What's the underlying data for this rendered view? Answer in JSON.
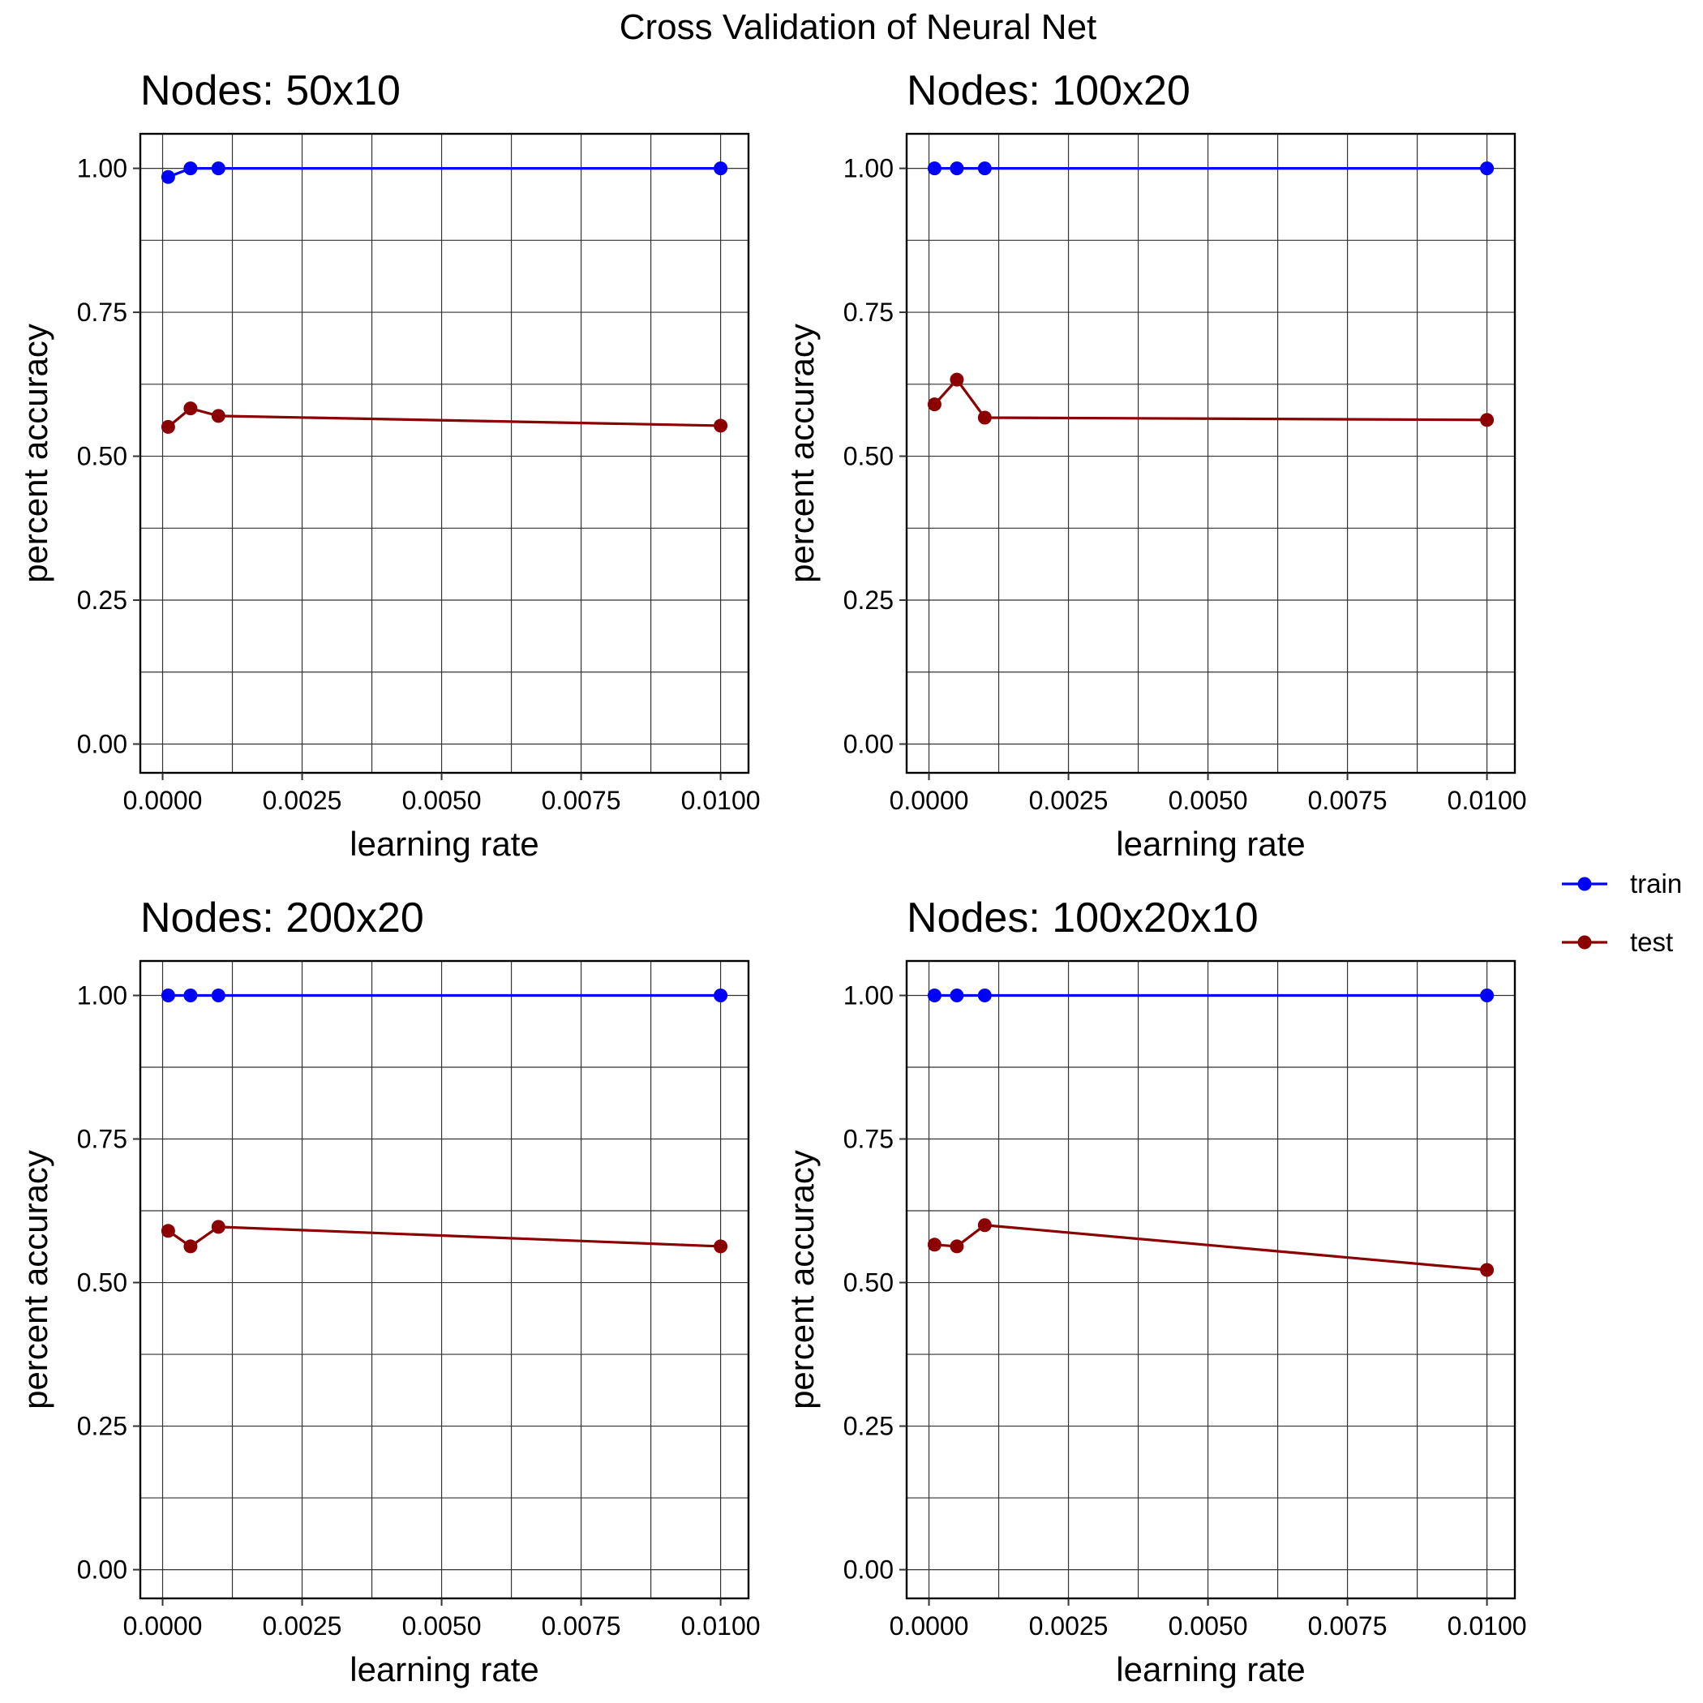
{
  "figure": {
    "title": "Cross Validation of Neural Net"
  },
  "legend": {
    "position": "right",
    "entries": [
      {
        "label": "train",
        "color": "#0000ff"
      },
      {
        "label": "test",
        "color": "#8b0000"
      }
    ]
  },
  "chart_data": [
    {
      "type": "line",
      "title": "Nodes: 50x10",
      "xlabel": "learning rate",
      "ylabel": "percent accuracy",
      "xlim": [
        -0.0004,
        0.0105
      ],
      "ylim": [
        -0.05,
        1.06
      ],
      "xticks": [
        "0.0000",
        "0.0025",
        "0.0050",
        "0.0075",
        "0.0100"
      ],
      "yticks": [
        "0.00",
        "0.25",
        "0.50",
        "0.75",
        "1.00"
      ],
      "grid": true,
      "x": [
        0.0001,
        0.0005,
        0.001,
        0.01
      ],
      "series": [
        {
          "name": "train",
          "color": "#0000ff",
          "values": [
            0.985,
            1.0,
            1.0,
            1.0
          ]
        },
        {
          "name": "test",
          "color": "#8b0000",
          "values": [
            0.551,
            0.583,
            0.57,
            0.553
          ]
        }
      ]
    },
    {
      "type": "line",
      "title": "Nodes: 100x20",
      "xlabel": "learning rate",
      "ylabel": "percent accuracy",
      "xlim": [
        -0.0004,
        0.0105
      ],
      "ylim": [
        -0.05,
        1.06
      ],
      "xticks": [
        "0.0000",
        "0.0025",
        "0.0050",
        "0.0075",
        "0.0100"
      ],
      "yticks": [
        "0.00",
        "0.25",
        "0.50",
        "0.75",
        "1.00"
      ],
      "grid": true,
      "x": [
        0.0001,
        0.0005,
        0.001,
        0.01
      ],
      "series": [
        {
          "name": "train",
          "color": "#0000ff",
          "values": [
            1.0,
            1.0,
            1.0,
            1.0
          ]
        },
        {
          "name": "test",
          "color": "#8b0000",
          "values": [
            0.59,
            0.633,
            0.567,
            0.563
          ]
        }
      ]
    },
    {
      "type": "line",
      "title": "Nodes: 200x20",
      "xlabel": "learning rate",
      "ylabel": "percent accuracy",
      "xlim": [
        -0.0004,
        0.0105
      ],
      "ylim": [
        -0.05,
        1.06
      ],
      "xticks": [
        "0.0000",
        "0.0025",
        "0.0050",
        "0.0075",
        "0.0100"
      ],
      "yticks": [
        "0.00",
        "0.25",
        "0.50",
        "0.75",
        "1.00"
      ],
      "grid": true,
      "x": [
        0.0001,
        0.0005,
        0.001,
        0.01
      ],
      "series": [
        {
          "name": "train",
          "color": "#0000ff",
          "values": [
            1.0,
            1.0,
            1.0,
            1.0
          ]
        },
        {
          "name": "test",
          "color": "#8b0000",
          "values": [
            0.59,
            0.563,
            0.597,
            0.563
          ]
        }
      ]
    },
    {
      "type": "line",
      "title": "Nodes: 100x20x10",
      "xlabel": "learning rate",
      "ylabel": "percent accuracy",
      "xlim": [
        -0.0004,
        0.0105
      ],
      "ylim": [
        -0.05,
        1.06
      ],
      "xticks": [
        "0.0000",
        "0.0025",
        "0.0050",
        "0.0075",
        "0.0100"
      ],
      "yticks": [
        "0.00",
        "0.25",
        "0.50",
        "0.75",
        "1.00"
      ],
      "grid": true,
      "x": [
        0.0001,
        0.0005,
        0.001,
        0.01
      ],
      "series": [
        {
          "name": "train",
          "color": "#0000ff",
          "values": [
            1.0,
            1.0,
            1.0,
            1.0
          ]
        },
        {
          "name": "test",
          "color": "#8b0000",
          "values": [
            0.566,
            0.563,
            0.6,
            0.522
          ]
        }
      ]
    }
  ]
}
